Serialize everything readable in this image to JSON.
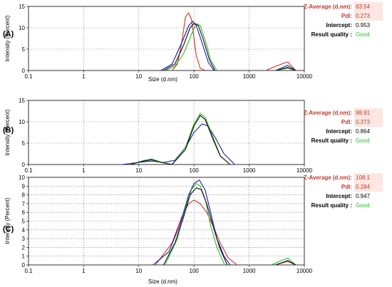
{
  "chart_data": [
    {
      "type": "line",
      "panel_label": "(A)",
      "xlabel": "Size (d.nm)",
      "ylabel": "Intensity (Percent)",
      "x_scale": "log",
      "xlim": [
        0.1,
        10000
      ],
      "ylim": [
        0,
        15
      ],
      "x_ticks": [
        "0.1",
        "1",
        "10",
        "100",
        "1000",
        "10000"
      ],
      "y_ticks": [
        "0",
        "5",
        "10",
        "15"
      ],
      "grid": true,
      "colors": [
        "#d32f2f",
        "#1a1aa6",
        "#2fb82f",
        "#111111"
      ],
      "series": [
        {
          "x": [
            40,
            50,
            60,
            70,
            80,
            90,
            100,
            110,
            130,
            160,
            2000,
            3000,
            5000,
            7000
          ],
          "y": [
            0,
            1.5,
            6.5,
            12.5,
            13.5,
            12.0,
            7.5,
            3.5,
            0.5,
            0,
            0,
            1.0,
            2.0,
            0
          ]
        },
        {
          "x": [
            25,
            40,
            60,
            80,
            95,
            110,
            140,
            180,
            230,
            3000,
            5000,
            7000
          ],
          "y": [
            0,
            1.5,
            6.5,
            10.5,
            11.5,
            10.5,
            6.5,
            2.0,
            0,
            0,
            1.2,
            0
          ]
        },
        {
          "x": [
            30,
            45,
            65,
            90,
            110,
            130,
            160,
            200,
            260,
            3000,
            5000,
            7000
          ],
          "y": [
            0,
            1.0,
            4.0,
            8.5,
            11.0,
            10.5,
            7.0,
            2.5,
            0,
            0,
            0.8,
            0
          ]
        },
        {
          "x": [
            28,
            45,
            65,
            85,
            100,
            120,
            150,
            190,
            240,
            3000,
            5000,
            7000
          ],
          "y": [
            0,
            1.5,
            6.0,
            10.0,
            11.0,
            10.5,
            7.0,
            2.5,
            0,
            0,
            0.6,
            0
          ]
        }
      ],
      "info": {
        "z_label": "Z-Average (d.nm):",
        "z_value": "83.54",
        "pdi_label": "PdI:",
        "pdi_value": "0.273",
        "intercept_label": "Intercept:",
        "intercept_value": "0.953",
        "quality_label": "Result quality :",
        "quality_value": "Good"
      }
    },
    {
      "type": "line",
      "panel_label": "(B)",
      "xlabel": "Size (d.nm)",
      "ylabel": "Intensity (Percent)",
      "x_scale": "log",
      "xlim": [
        0.1,
        10000
      ],
      "ylim": [
        0,
        15
      ],
      "x_ticks": [
        "0.1",
        "1",
        "10",
        "100",
        "1000",
        "10000"
      ],
      "y_ticks": [
        "0",
        "5",
        "10",
        "15"
      ],
      "grid": true,
      "colors": [
        "#d32f2f",
        "#1a1aa6",
        "#2fb82f",
        "#111111"
      ],
      "series": [
        {
          "x": [
            7,
            12,
            17,
            25,
            40,
            70,
            100,
            130,
            160,
            220,
            300,
            450
          ],
          "y": [
            0,
            0.8,
            1.2,
            0.6,
            0,
            4.0,
            9.0,
            11.5,
            10.5,
            6.0,
            2.0,
            0
          ]
        },
        {
          "x": [
            5,
            10,
            17,
            28,
            45,
            70,
            100,
            140,
            180,
            250,
            350,
            550
          ],
          "y": [
            0,
            0.5,
            0.8,
            0.5,
            1.0,
            4.0,
            7.5,
            9.5,
            9.0,
            6.0,
            2.5,
            0
          ]
        },
        {
          "x": [
            7,
            12,
            17,
            25,
            40,
            70,
            100,
            130,
            160,
            220,
            300,
            450
          ],
          "y": [
            0,
            0.9,
            1.3,
            0.6,
            0,
            4.0,
            9.5,
            12.0,
            11.0,
            6.5,
            2.0,
            0
          ]
        },
        {
          "x": [
            7,
            12,
            17,
            25,
            40,
            70,
            100,
            130,
            160,
            220,
            300,
            450
          ],
          "y": [
            0,
            0.8,
            1.1,
            0.5,
            0,
            3.5,
            9.0,
            11.5,
            10.5,
            6.0,
            2.0,
            0
          ]
        }
      ],
      "info": {
        "z_label": "Z-Average (d.nm):",
        "z_value": "98.91",
        "pdi_label": "PdI:",
        "pdi_value": "0.373",
        "intercept_label": "Intercept:",
        "intercept_value": "0.864",
        "quality_label": "Result quality :",
        "quality_value": "Good"
      }
    },
    {
      "type": "line",
      "panel_label": "(C)",
      "xlabel": "Size (d.nm)",
      "ylabel": "Intensity (Percent)",
      "x_scale": "log",
      "xlim": [
        0.1,
        10000
      ],
      "ylim": [
        0,
        10
      ],
      "x_ticks": [
        "0.1",
        "1",
        "10",
        "100",
        "1000",
        "10000"
      ],
      "y_ticks": [
        "0",
        "1",
        "2",
        "3",
        "4",
        "5",
        "6",
        "7",
        "8",
        "9",
        "10"
      ],
      "grid": true,
      "colors": [
        "#d32f2f",
        "#1a1aa6",
        "#2fb82f",
        "#111111"
      ],
      "series": [
        {
          "x": [
            20,
            40,
            60,
            80,
            100,
            130,
            170,
            220,
            300,
            420,
            600,
            3000,
            5000,
            7000
          ],
          "y": [
            0,
            2.5,
            5.5,
            7.0,
            7.4,
            7.0,
            6.0,
            4.5,
            2.5,
            0.8,
            0,
            0,
            0.4,
            0
          ]
        },
        {
          "x": [
            18,
            35,
            55,
            80,
            100,
            125,
            160,
            200,
            260,
            350,
            450
          ],
          "y": [
            0,
            1.5,
            4.5,
            8.0,
            9.3,
            9.7,
            8.5,
            6.0,
            3.0,
            1.0,
            0
          ]
        },
        {
          "x": [
            30,
            50,
            70,
            90,
            110,
            130,
            160,
            200,
            260,
            360,
            2500,
            5000,
            7000
          ],
          "y": [
            0,
            3.0,
            6.5,
            8.6,
            9.3,
            9.0,
            7.5,
            4.5,
            2.0,
            0,
            0,
            0.8,
            0
          ]
        },
        {
          "x": [
            28,
            45,
            65,
            85,
            110,
            135,
            170,
            220,
            290,
            400,
            3000,
            5000,
            7000
          ],
          "y": [
            0,
            2.5,
            5.5,
            8.0,
            8.8,
            8.6,
            7.0,
            4.5,
            2.0,
            0,
            0,
            0.5,
            0
          ]
        }
      ],
      "info": {
        "z_label": "Z-Average (d.nm):",
        "z_value": "108.1",
        "pdi_label": "PdI:",
        "pdi_value": "0.284",
        "intercept_label": "Intercept:",
        "intercept_value": "0.947",
        "quality_label": "Result quality :",
        "quality_value": "Good"
      }
    }
  ]
}
